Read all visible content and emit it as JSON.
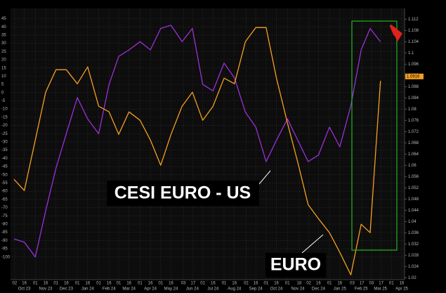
{
  "chart_data": {
    "type": "line",
    "x": [
      "2023-10-01",
      "2023-10-16",
      "2023-11-01",
      "2023-11-16",
      "2023-12-01",
      "2023-12-16",
      "2024-01-01",
      "2024-01-16",
      "2024-02-01",
      "2024-02-16",
      "2024-03-01",
      "2024-03-16",
      "2024-04-01",
      "2024-04-16",
      "2024-05-01",
      "2024-05-16",
      "2024-06-01",
      "2024-06-16",
      "2024-07-01",
      "2024-07-16",
      "2024-08-01",
      "2024-08-16",
      "2024-09-01",
      "2024-09-16",
      "2024-10-01",
      "2024-10-16",
      "2024-11-01",
      "2024-11-16",
      "2024-12-01",
      "2024-12-16",
      "2025-01-01",
      "2025-01-16",
      "2025-02-01",
      "2025-02-16",
      "2025-03-01",
      "2025-03-16"
    ],
    "series": [
      {
        "name": "CESI EURO - US",
        "color": "#9b30d9",
        "values": [
          -89,
          -91,
          -100,
          -72,
          -46,
          -25,
          -3,
          -16,
          -25,
          5,
          22,
          26,
          31,
          26,
          39,
          41,
          31,
          39,
          5,
          1,
          18,
          9,
          -12,
          -21,
          -42,
          -29,
          -16,
          -29,
          -42,
          -38,
          -21,
          -33,
          -8,
          26,
          39,
          31
        ]
      },
      {
        "name": "EURO",
        "color": "#f5a020",
        "axis": "y2",
        "last_value": 1.0916,
        "values": [
          1.055,
          1.051,
          1.069,
          1.086,
          1.094,
          1.094,
          1.089,
          1.095,
          1.081,
          1.079,
          1.071,
          1.079,
          1.076,
          1.069,
          1.06,
          1.071,
          1.081,
          1.086,
          1.076,
          1.081,
          1.091,
          1.089,
          1.104,
          1.109,
          1.109,
          1.091,
          1.075,
          1.061,
          1.046,
          1.041,
          1.036,
          1.029,
          1.021,
          1.039,
          1.036,
          1.09
        ]
      }
    ],
    "xlim": [
      "2023-09-26",
      "2025-04-20"
    ],
    "xticks": [
      {
        "value": "2023-10-02",
        "label": "02"
      },
      {
        "value": "2023-10-16",
        "label": "16"
      },
      {
        "value": "2023-11-01",
        "label": "01"
      },
      {
        "value": "2023-11-16",
        "label": "16"
      },
      {
        "value": "2023-12-01",
        "label": "01"
      },
      {
        "value": "2023-12-16",
        "label": "16"
      },
      {
        "value": "2024-01-01",
        "label": "01"
      },
      {
        "value": "2024-01-16",
        "label": "16"
      },
      {
        "value": "2024-02-01",
        "label": "01"
      },
      {
        "value": "2024-02-16",
        "label": "16"
      },
      {
        "value": "2024-03-01",
        "label": "01"
      },
      {
        "value": "2024-03-16",
        "label": "16"
      },
      {
        "value": "2024-04-01",
        "label": "01"
      },
      {
        "value": "2024-04-16",
        "label": "16"
      },
      {
        "value": "2024-05-01",
        "label": "01"
      },
      {
        "value": "2024-05-16",
        "label": "16"
      },
      {
        "value": "2024-06-03",
        "label": "03"
      },
      {
        "value": "2024-06-17",
        "label": "17"
      },
      {
        "value": "2024-07-01",
        "label": "01"
      },
      {
        "value": "2024-07-16",
        "label": "16"
      },
      {
        "value": "2024-08-01",
        "label": "01"
      },
      {
        "value": "2024-08-16",
        "label": "16"
      },
      {
        "value": "2024-09-02",
        "label": "02"
      },
      {
        "value": "2024-09-16",
        "label": "16"
      },
      {
        "value": "2024-10-01",
        "label": "01"
      },
      {
        "value": "2024-10-16",
        "label": "16"
      },
      {
        "value": "2024-11-01",
        "label": "01"
      },
      {
        "value": "2024-11-18",
        "label": "18"
      },
      {
        "value": "2024-12-02",
        "label": "02"
      },
      {
        "value": "2024-12-16",
        "label": "16"
      },
      {
        "value": "2025-01-01",
        "label": "01"
      },
      {
        "value": "2025-01-16",
        "label": "16"
      },
      {
        "value": "2025-02-03",
        "label": "03"
      },
      {
        "value": "2025-02-17",
        "label": "17"
      },
      {
        "value": "2025-03-03",
        "label": "03"
      },
      {
        "value": "2025-03-17",
        "label": "17"
      },
      {
        "value": "2025-04-01",
        "label": "01"
      },
      {
        "value": "2025-04-16",
        "label": "16"
      }
    ],
    "xmonths": [
      {
        "value": "2023-10-16",
        "label": "Oct 23"
      },
      {
        "value": "2023-11-16",
        "label": "Nov 23"
      },
      {
        "value": "2023-12-16",
        "label": "Dec 23"
      },
      {
        "value": "2024-01-16",
        "label": "Jan 24"
      },
      {
        "value": "2024-02-16",
        "label": "Feb 24"
      },
      {
        "value": "2024-03-16",
        "label": "Mar 24"
      },
      {
        "value": "2024-04-16",
        "label": "Apr 24"
      },
      {
        "value": "2024-05-16",
        "label": "May 24"
      },
      {
        "value": "2024-06-16",
        "label": "Jun 24"
      },
      {
        "value": "2024-07-16",
        "label": "Jul 24"
      },
      {
        "value": "2024-08-16",
        "label": "Aug 24"
      },
      {
        "value": "2024-09-16",
        "label": "Sep 24"
      },
      {
        "value": "2024-10-16",
        "label": "Oct 24"
      },
      {
        "value": "2024-11-16",
        "label": "Nov 24"
      },
      {
        "value": "2024-12-16",
        "label": "Dec 24"
      },
      {
        "value": "2025-01-16",
        "label": "Jan 25"
      },
      {
        "value": "2025-02-16",
        "label": "Feb 25"
      },
      {
        "value": "2025-03-16",
        "label": "Mar 25"
      },
      {
        "value": "2025-04-16",
        "label": "Apr 25"
      }
    ],
    "ylim": [
      -113.8,
      51.2
    ],
    "yticks": [
      45,
      40,
      35,
      30,
      25,
      20,
      15,
      10,
      5,
      0,
      -5,
      -10,
      -15,
      -20,
      -25,
      -30,
      -35,
      -40,
      -45,
      -50,
      -55,
      -60,
      -65,
      -70,
      -75,
      -80,
      -85,
      -90,
      -95,
      -100
    ],
    "y2lim": [
      1.0193,
      1.1158
    ],
    "y2ticks": [
      1.112,
      1.108,
      1.104,
      1.1,
      1.096,
      1.092,
      1.088,
      1.084,
      1.08,
      1.076,
      1.072,
      1.068,
      1.064,
      1.06,
      1.056,
      1.052,
      1.048,
      1.044,
      1.04,
      1.036,
      1.032,
      1.028,
      1.024,
      1.02
    ],
    "grid": true
  }
}
